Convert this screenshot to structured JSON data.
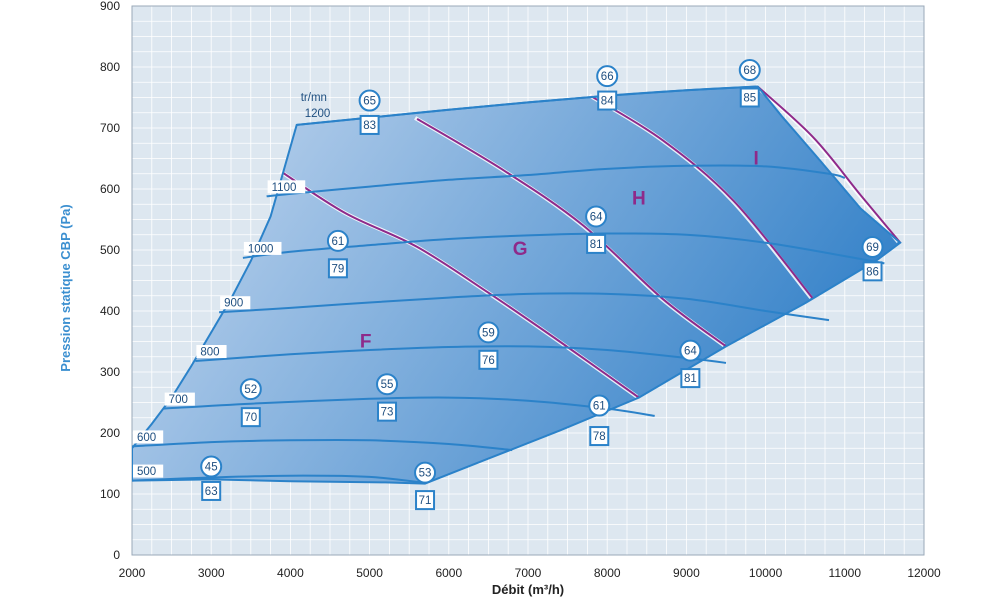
{
  "chart_data": {
    "type": "line",
    "title": "",
    "xlabel": "Débit (m³/h)",
    "ylabel": "Pression statique CBP (Pa)",
    "xlim": [
      2000,
      12000
    ],
    "ylim": [
      0,
      900
    ],
    "x_ticks": [
      "2000",
      "3000",
      "4000",
      "5000",
      "6000",
      "7000",
      "8000",
      "9000",
      "10000",
      "11000",
      "12000"
    ],
    "y_ticks": [
      "0",
      "100",
      "200",
      "300",
      "400",
      "500",
      "600",
      "700",
      "800",
      "900"
    ],
    "speed_unit": "tr/mn",
    "colors": {
      "envelope": "#2b82c9",
      "zone_boundary": "#8e2a8a",
      "zone_label": "#8e2a8a",
      "axis_title": "#3b8fd0",
      "plot_background": "#dde7f0",
      "grid": "#ffffff",
      "fill_light": "#c9daf0",
      "fill_dark": "#3a85ca"
    },
    "envelope": [
      [
        2000,
        175
      ],
      [
        2250,
        215
      ],
      [
        2500,
        258
      ],
      [
        2750,
        310
      ],
      [
        3000,
        365
      ],
      [
        3250,
        420
      ],
      [
        3500,
        482
      ],
      [
        3750,
        555
      ],
      [
        4080,
        705
      ],
      [
        5000,
        717
      ],
      [
        6000,
        730
      ],
      [
        7000,
        742
      ],
      [
        8000,
        753
      ],
      [
        9000,
        762
      ],
      [
        9900,
        768
      ],
      [
        10200,
        720
      ],
      [
        10700,
        645
      ],
      [
        11200,
        568
      ],
      [
        11700,
        512
      ],
      [
        11400,
        483
      ],
      [
        10500,
        413
      ],
      [
        9500,
        342
      ],
      [
        8400,
        258
      ],
      [
        7400,
        204
      ],
      [
        6500,
        158
      ],
      [
        5700,
        117
      ],
      [
        5200,
        119
      ],
      [
        4000,
        121
      ],
      [
        3000,
        124
      ],
      [
        2000,
        122
      ]
    ],
    "series": [
      {
        "name": "500",
        "points": [
          [
            2000,
            122
          ],
          [
            3000,
            127
          ],
          [
            4000,
            130
          ],
          [
            5000,
            128
          ],
          [
            5700,
            118
          ]
        ]
      },
      {
        "name": "600",
        "points": [
          [
            2000,
            178
          ],
          [
            3000,
            185
          ],
          [
            4000,
            188
          ],
          [
            5000,
            188
          ],
          [
            6000,
            182
          ],
          [
            6800,
            172
          ]
        ]
      },
      {
        "name": "700",
        "points": [
          [
            2400,
            240
          ],
          [
            3500,
            248
          ],
          [
            5000,
            256
          ],
          [
            6000,
            258
          ],
          [
            7000,
            253
          ],
          [
            8000,
            240
          ],
          [
            8600,
            228
          ]
        ]
      },
      {
        "name": "800",
        "points": [
          [
            2800,
            318
          ],
          [
            4000,
            329
          ],
          [
            5000,
            336
          ],
          [
            6000,
            341
          ],
          [
            7000,
            342
          ],
          [
            8000,
            336
          ],
          [
            9000,
            323
          ],
          [
            9500,
            315
          ]
        ]
      },
      {
        "name": "900",
        "points": [
          [
            3100,
            398
          ],
          [
            4000,
            405
          ],
          [
            5000,
            414
          ],
          [
            6000,
            422
          ],
          [
            7000,
            428
          ],
          [
            8000,
            428
          ],
          [
            9000,
            420
          ],
          [
            10000,
            400
          ],
          [
            10800,
            385
          ]
        ]
      },
      {
        "name": "1000",
        "points": [
          [
            3400,
            487
          ],
          [
            4000,
            497
          ],
          [
            5000,
            508
          ],
          [
            6000,
            518
          ],
          [
            7000,
            524
          ],
          [
            8000,
            527
          ],
          [
            9000,
            525
          ],
          [
            10000,
            512
          ],
          [
            11000,
            490
          ],
          [
            11500,
            478
          ]
        ]
      },
      {
        "name": "1100",
        "points": [
          [
            3700,
            588
          ],
          [
            4000,
            592
          ],
          [
            5000,
            604
          ],
          [
            6000,
            615
          ],
          [
            7000,
            623
          ],
          [
            8000,
            633
          ],
          [
            9000,
            638
          ],
          [
            10000,
            637
          ],
          [
            10800,
            625
          ],
          [
            11000,
            618
          ]
        ]
      },
      {
        "name": "1200",
        "points": [
          [
            4080,
            705
          ],
          [
            5000,
            717
          ],
          [
            6000,
            730
          ],
          [
            7000,
            742
          ],
          [
            8000,
            753
          ],
          [
            9000,
            762
          ],
          [
            9900,
            768
          ]
        ]
      }
    ],
    "zone_boundaries": [
      {
        "name": "F|G",
        "points": [
          [
            3900,
            627
          ],
          [
            4700,
            560
          ],
          [
            5600,
            505
          ],
          [
            6500,
            430
          ],
          [
            7400,
            350
          ],
          [
            8400,
            258
          ]
        ]
      },
      {
        "name": "G|H",
        "points": [
          [
            5600,
            715
          ],
          [
            6700,
            630
          ],
          [
            7700,
            540
          ],
          [
            8700,
            420
          ],
          [
            9500,
            342
          ]
        ]
      },
      {
        "name": "H|I",
        "points": [
          [
            7800,
            752
          ],
          [
            8700,
            680
          ],
          [
            9600,
            580
          ],
          [
            10600,
            420
          ]
        ]
      },
      {
        "name": "I|end",
        "points": [
          [
            9900,
            768
          ],
          [
            10600,
            685
          ],
          [
            11200,
            590
          ],
          [
            11700,
            512
          ]
        ]
      }
    ],
    "zones": [
      {
        "label": "F",
        "x": 4950,
        "y": 340
      },
      {
        "label": "G",
        "x": 6900,
        "y": 492
      },
      {
        "label": "H",
        "x": 8400,
        "y": 575
      },
      {
        "label": "I",
        "x": 9880,
        "y": 640
      }
    ],
    "annotations": [
      {
        "circle": "45",
        "square": "63",
        "x": 3000,
        "y_circle": 145,
        "y_square": 105
      },
      {
        "circle": "52",
        "square": "70",
        "x": 3500,
        "y_circle": 272,
        "y_square": 226
      },
      {
        "circle": "61",
        "square": "79",
        "x": 4600,
        "y_circle": 515,
        "y_square": 470
      },
      {
        "circle": "65",
        "square": "83",
        "x": 5000,
        "y_circle": 745,
        "y_square": 705
      },
      {
        "circle": "55",
        "square": "73",
        "x": 5220,
        "y_circle": 280,
        "y_square": 235
      },
      {
        "circle": "53",
        "square": "71",
        "x": 5700,
        "y_circle": 135,
        "y_square": 90
      },
      {
        "circle": "59",
        "square": "76",
        "x": 6500,
        "y_circle": 365,
        "y_square": 320
      },
      {
        "circle": "61",
        "square": "78",
        "x": 7900,
        "y_circle": 245,
        "y_square": 195
      },
      {
        "circle": "64",
        "square": "81",
        "x": 7860,
        "y_circle": 555,
        "y_square": 510
      },
      {
        "circle": "66",
        "square": "84",
        "x": 8000,
        "y_circle": 785,
        "y_square": 745
      },
      {
        "circle": "64",
        "square": "81",
        "x": 9050,
        "y_circle": 335,
        "y_square": 290
      },
      {
        "circle": "68",
        "square": "85",
        "x": 9800,
        "y_circle": 795,
        "y_square": 750
      },
      {
        "circle": "69",
        "square": "86",
        "x": 11350,
        "y_circle": 505,
        "y_square": 465
      }
    ]
  }
}
